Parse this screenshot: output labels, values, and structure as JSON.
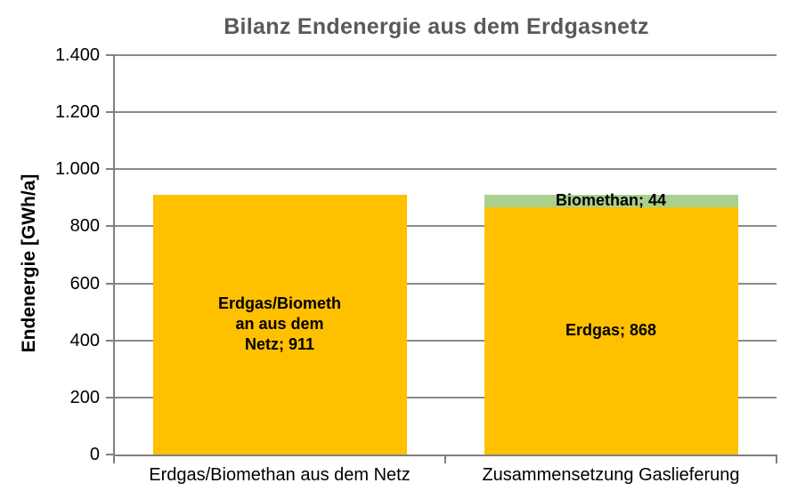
{
  "chart_data": {
    "type": "bar",
    "stacked": true,
    "title": "Bilanz Endenergie aus dem Erdgasnetz",
    "xlabel": "",
    "ylabel": "Endenergie [GWh/a]",
    "ylim": [
      0,
      1400
    ],
    "ytick_step": 200,
    "ytick_labels": [
      "0",
      "200",
      "400",
      "600",
      "800",
      "1.000",
      "1.200",
      "1.400"
    ],
    "grid": "horizontal",
    "legend": "none",
    "categories": [
      "Erdgas/Biomethan aus dem Netz",
      "Zusammensetzung Gaslieferung"
    ],
    "bars": [
      {
        "category": "Erdgas/Biomethan aus dem Netz",
        "segments": [
          {
            "name": "Erdgas/Biomethan aus dem Netz",
            "value": 911,
            "color": "#FFC000",
            "data_label": "Erdgas/Biomethan aus dem Netz; 911",
            "label_lines": [
              "Erdgas/Biometh",
              "an aus dem",
              "Netz; 911"
            ]
          }
        ]
      },
      {
        "category": "Zusammensetzung Gaslieferung",
        "segments": [
          {
            "name": "Erdgas",
            "value": 868,
            "color": "#FFC000",
            "data_label": "Erdgas; 868",
            "label_lines": [
              "Erdgas; 868"
            ]
          },
          {
            "name": "Biomethan",
            "value": 44,
            "color": "#A9D08E",
            "data_label": "Biomethan; 44",
            "label_lines": [
              "Biomethan; 44"
            ]
          }
        ]
      }
    ],
    "style": {
      "title_color": "#595959",
      "axis_color": "#7F7F7F",
      "gridline_color": "#8A8A8A",
      "label_color": "#000000"
    }
  }
}
